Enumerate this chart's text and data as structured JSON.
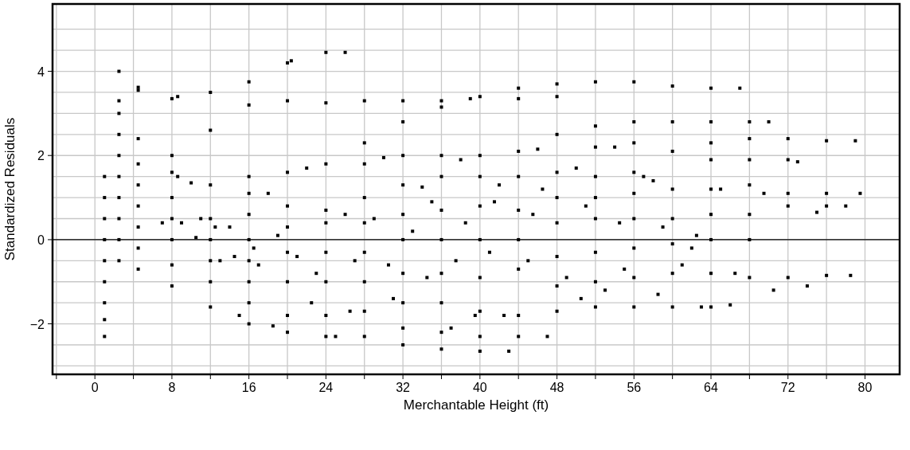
{
  "chart_data": {
    "type": "scatter",
    "xlabel": "Merchantable Height (ft)",
    "ylabel": "Standardized Residuals",
    "xlim": [
      -4.4,
      83.6
    ],
    "ylim": [
      -3.2,
      5.6
    ],
    "xticks": [
      {
        "value": -4,
        "label": null
      },
      0,
      {
        "value": 4,
        "label": null
      },
      8,
      {
        "value": 12,
        "label": null
      },
      16,
      {
        "value": 20,
        "label": null
      },
      24,
      {
        "value": 28,
        "label": null
      },
      32,
      {
        "value": 36,
        "label": null
      },
      40,
      {
        "value": 44,
        "label": null
      },
      48,
      {
        "value": 52,
        "label": null
      },
      56,
      {
        "value": 60,
        "label": null
      },
      64,
      {
        "value": 68,
        "label": null
      },
      72,
      {
        "value": 76,
        "label": null
      },
      80
    ],
    "yticks": [
      {
        "value": -3,
        "label": null
      },
      {
        "value": -2.5,
        "label": null
      },
      {
        "value": -2,
        "label": "−2"
      },
      {
        "value": -1.5,
        "label": null
      },
      {
        "value": -1,
        "label": null
      },
      {
        "value": -0.5,
        "label": null
      },
      0,
      {
        "value": 0.5,
        "label": null
      },
      {
        "value": 1,
        "label": null
      },
      {
        "value": 1.5,
        "label": null
      },
      2,
      {
        "value": 2.5,
        "label": null
      },
      {
        "value": 3,
        "label": null
      },
      {
        "value": 3.5,
        "label": null
      },
      4,
      {
        "value": 4.5,
        "label": null
      },
      {
        "value": 5,
        "label": null
      }
    ],
    "grid": true,
    "marker": "square",
    "ref_lines": [
      {
        "axis": "y",
        "value": 0,
        "color": "#000000"
      }
    ],
    "series": [
      {
        "color": "#000000",
        "x": [
          1,
          1,
          1,
          1,
          1,
          1,
          1,
          1,
          1,
          2.5,
          2.5,
          2.5,
          2.5,
          2.5,
          2.5,
          2.5,
          2.5,
          2.5,
          2.5,
          4.5,
          4.5,
          4.5,
          4.5,
          4.5,
          4.5,
          4.5,
          4.5,
          4.5,
          8,
          8,
          8,
          8,
          8,
          8,
          8,
          8,
          8.6,
          8.6,
          12,
          12,
          12,
          12,
          12,
          12,
          12,
          12,
          16,
          16,
          16,
          16,
          16,
          16,
          16,
          16,
          16,
          16,
          20,
          20,
          20,
          20,
          20,
          20,
          20,
          20,
          20,
          20.4,
          24,
          24,
          24,
          24,
          24,
          24,
          24,
          24,
          24,
          26,
          28,
          28,
          28,
          28,
          28,
          28,
          28,
          28,
          28,
          32,
          32,
          32,
          32,
          32,
          32,
          32,
          32,
          32,
          32,
          36,
          36,
          36,
          36,
          36,
          36,
          36,
          36,
          36,
          36,
          40,
          40,
          40,
          40,
          40,
          40,
          40,
          40,
          40,
          39,
          44,
          44,
          44,
          44,
          44,
          44,
          44,
          44,
          44,
          43,
          48,
          48,
          48,
          48,
          48,
          48,
          48,
          48,
          48,
          52,
          52,
          52,
          52,
          52,
          52,
          52,
          52,
          52,
          56,
          56,
          56,
          56,
          56,
          56,
          56,
          56,
          56,
          60,
          60,
          60,
          60,
          60,
          60,
          60,
          60,
          64,
          64,
          64,
          64,
          64,
          64,
          64,
          64,
          64,
          68,
          68,
          68,
          68,
          68,
          68,
          68,
          67,
          72,
          72,
          72,
          72,
          72,
          76,
          76,
          76,
          76,
          70,
          69.5,
          70.5,
          74,
          75,
          78,
          78.5,
          79,
          79.5,
          73,
          62,
          66,
          58,
          54,
          50,
          46,
          42,
          38,
          34,
          30,
          26,
          22,
          18,
          14,
          10,
          11,
          13,
          15,
          17,
          18.5,
          19,
          21,
          22.5,
          23,
          25,
          26.5,
          27,
          29,
          30.5,
          31,
          33,
          34.5,
          35,
          37,
          37.5,
          38.5,
          39.5,
          41,
          41.5,
          42.5,
          45,
          45.5,
          47,
          46.5,
          49,
          50.5,
          51,
          53,
          54.5,
          55,
          57,
          58.5,
          59,
          61,
          62.5,
          63,
          65,
          66.5,
          9,
          7,
          10.5,
          12.5,
          14.5,
          16.5
        ],
        "values": [
          -2.3,
          -1.9,
          -1.5,
          -1,
          -0.5,
          0,
          0.5,
          1,
          1.5,
          -0.5,
          0,
          0.5,
          1,
          1.5,
          2,
          2.5,
          3,
          3.3,
          4,
          -0.7,
          -0.2,
          0.3,
          0.8,
          1.3,
          1.8,
          2.4,
          3.55,
          3.62,
          -1.1,
          -0.6,
          0,
          0.5,
          1,
          1.6,
          2,
          3.35,
          3.4,
          1.5,
          -1.6,
          -1,
          -0.5,
          0,
          0.5,
          1.3,
          2.6,
          3.5,
          -2,
          -1.5,
          -1,
          -0.5,
          0,
          0.6,
          1.1,
          1.5,
          3.2,
          3.75,
          -2.2,
          -1.8,
          -1,
          -0.3,
          0.3,
          0.8,
          1.6,
          3.3,
          4.2,
          4.25,
          -2.3,
          -1.8,
          -1,
          -0.3,
          0.4,
          0.7,
          1.8,
          3.25,
          4.45,
          4.45,
          -2.3,
          -1.7,
          -1,
          -0.3,
          0.4,
          1,
          1.8,
          2.3,
          3.3,
          -2.5,
          -2.1,
          -1.5,
          -0.8,
          0,
          0.6,
          1.3,
          2,
          2.8,
          3.3,
          -2.6,
          -2.2,
          -1.5,
          -0.8,
          0,
          0.7,
          1.5,
          2,
          3.15,
          3.3,
          -2.65,
          -2.3,
          -1.7,
          -0.9,
          0,
          0.8,
          1.5,
          2,
          3.4,
          3.35,
          -2.3,
          -1.8,
          -0.7,
          0,
          0.7,
          1.5,
          2.1,
          3.35,
          3.6,
          -2.65,
          -1.7,
          -1.1,
          -0.4,
          0.4,
          1,
          1.6,
          2.5,
          3.4,
          3.7,
          -1.6,
          -1,
          -0.3,
          0.5,
          1,
          1.5,
          2.2,
          2.7,
          3.75,
          -1.6,
          -0.9,
          -0.2,
          0.5,
          1.1,
          1.6,
          2.3,
          2.8,
          3.75,
          -1.6,
          -0.8,
          -0.1,
          0.5,
          1.2,
          2.1,
          2.8,
          3.65,
          -1.6,
          -0.8,
          0,
          0.6,
          1.2,
          1.9,
          2.3,
          2.8,
          3.6,
          -0.9,
          0,
          0.6,
          1.3,
          1.9,
          2.4,
          2.8,
          3.6,
          -0.9,
          0.8,
          1.1,
          1.9,
          2.4,
          -0.85,
          0.8,
          1.1,
          2.35,
          2.8,
          1.1,
          -1.2,
          -1.1,
          0.65,
          0.8,
          -0.85,
          2.35,
          1.1,
          1.85,
          -0.2,
          -1.55,
          1.4,
          2.2,
          1.7,
          2.15,
          1.3,
          1.9,
          1.25,
          1.95,
          0.6,
          1.7,
          1.1,
          0.3,
          1.35,
          0.5,
          -0.5,
          -1.8,
          -0.6,
          -2.05,
          0.1,
          -0.4,
          -1.5,
          -0.8,
          -2.3,
          -1.7,
          -0.5,
          0.5,
          -0.6,
          -1.4,
          0.2,
          -0.9,
          0.9,
          -2.1,
          -0.5,
          0.4,
          -1.8,
          -0.3,
          0.9,
          -1.8,
          -0.5,
          0.6,
          -2.3,
          1.2,
          -0.9,
          -1.4,
          0.8,
          -1.2,
          0.4,
          -0.7,
          1.5,
          -1.3,
          0.3,
          -0.6,
          0.1,
          -1.6,
          1.2,
          -0.8,
          0.4,
          0.4,
          0.05,
          0.3,
          -0.4,
          -0.2
        ]
      }
    ]
  }
}
